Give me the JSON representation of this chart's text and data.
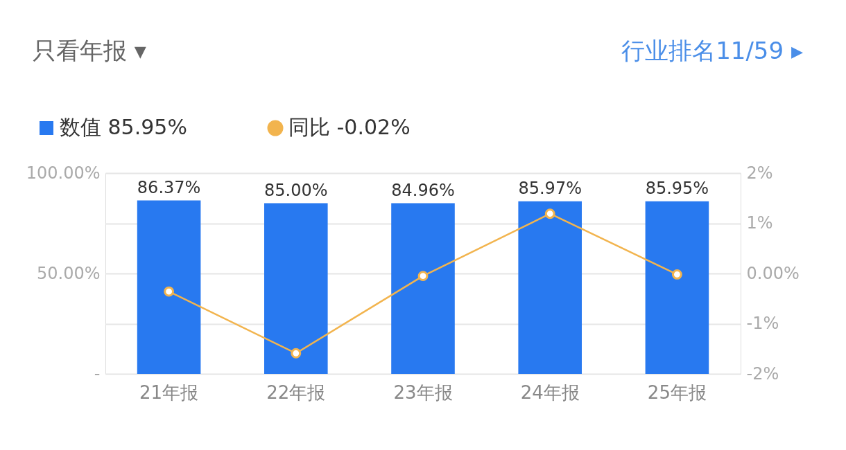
{
  "chart_data": {
    "type": "bar",
    "annotations": [
      "只看年报 ▾",
      "行业排名11/59 ▸"
    ],
    "categories": [
      "21年报",
      "22年报",
      "23年报",
      "24年报",
      "25年报"
    ],
    "series": [
      {
        "name": "数值 85.95%",
        "color": "#2879f0",
        "values": [
          86.37,
          85.0,
          84.96,
          85.97,
          85.95
        ],
        "value_labels": [
          "86.37%",
          "85.00%",
          "84.96%",
          "85.97%",
          "85.95%"
        ]
      },
      {
        "name": "同比 -0.02%",
        "type": "line",
        "axis": "y2",
        "color": "#f2b44e",
        "marker": "circle",
        "values": [
          -0.36,
          -1.59,
          -0.05,
          1.19,
          -0.02
        ]
      }
    ],
    "ylim": [
      0,
      100
    ],
    "yticks": [
      {
        "value": 0,
        "label": "-"
      },
      {
        "value": 25,
        "label": null
      },
      {
        "value": 50,
        "label": "50.00%"
      },
      {
        "value": 75,
        "label": null
      },
      {
        "value": 100,
        "label": "100.00%"
      }
    ],
    "y2lim": [
      -2,
      2
    ],
    "y2ticks": [
      {
        "value": -2,
        "label": "-2%"
      },
      {
        "value": -1,
        "label": "-1%"
      },
      {
        "value": 0,
        "label": "0.00%"
      },
      {
        "value": 1,
        "label": "1%"
      },
      {
        "value": 2,
        "label": "2%"
      }
    ],
    "grid": "y",
    "legend": "top left"
  }
}
